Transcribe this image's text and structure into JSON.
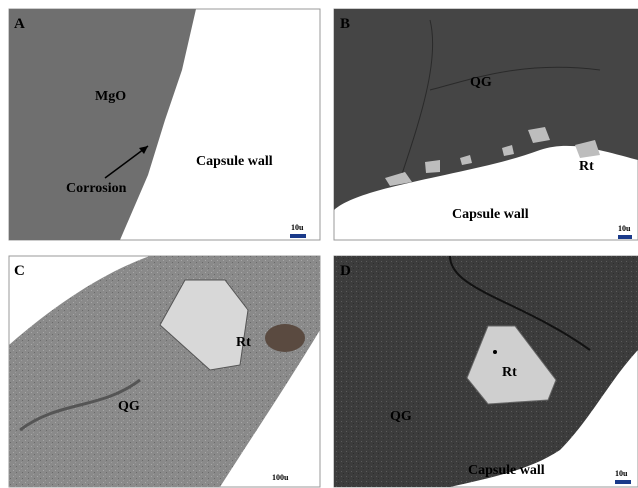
{
  "panels": [
    {
      "letter": "A",
      "labels": [
        "MgO",
        "Corrosion",
        "Capsule wall"
      ],
      "scale": "10u"
    },
    {
      "letter": "B",
      "labels": [
        "QG",
        "Rt",
        "Capsule wall"
      ],
      "scale": "10u"
    },
    {
      "letter": "C",
      "labels": [
        "Rt",
        "QG"
      ],
      "scale": "100u"
    },
    {
      "letter": "D",
      "labels": [
        "Rt",
        "QG",
        "Capsule wall"
      ],
      "scale": "10u"
    }
  ]
}
